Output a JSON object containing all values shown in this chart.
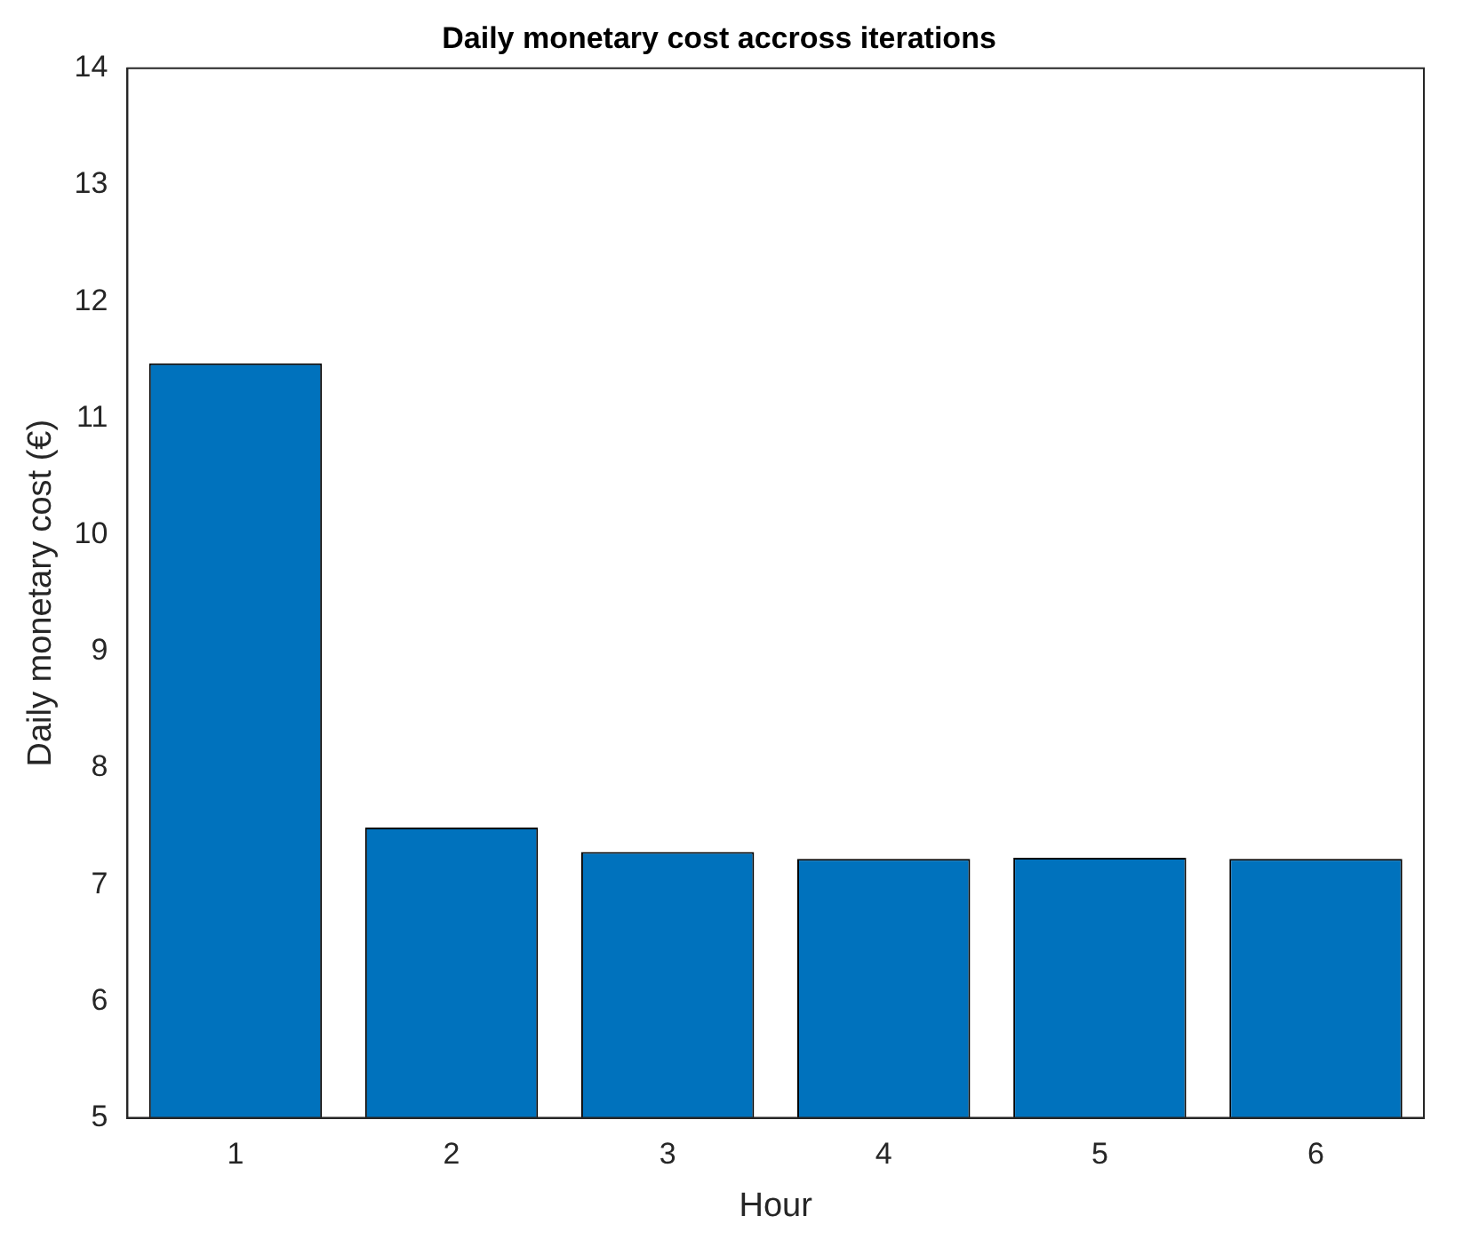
{
  "chart_data": {
    "type": "bar",
    "title": "Daily monetary cost accross iterations",
    "xlabel": "Hour",
    "ylabel": "Daily monetary cost (€)",
    "categories": [
      "1",
      "2",
      "3",
      "4",
      "5",
      "6"
    ],
    "values": [
      11.47,
      7.49,
      7.28,
      7.22,
      7.23,
      7.22
    ],
    "color": "#0072bd",
    "ylim": [
      5,
      14
    ],
    "yticks": [
      5,
      6,
      7,
      8,
      9,
      10,
      11,
      12,
      13,
      14
    ],
    "grid": false,
    "legend": false
  }
}
